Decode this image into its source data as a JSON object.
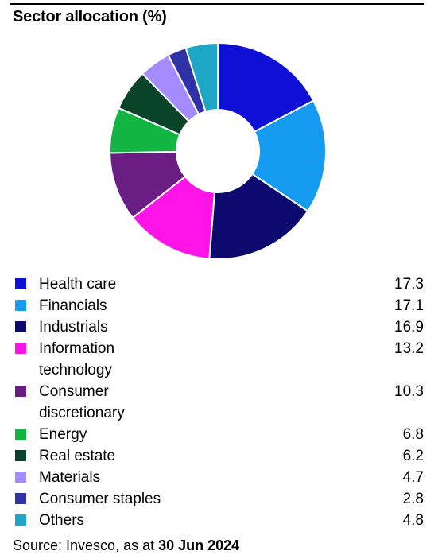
{
  "title": "Sector allocation (%)",
  "chart_data": {
    "type": "pie",
    "title": "Sector allocation (%)",
    "donut": true,
    "categories": [
      "Health care",
      "Financials",
      "Industrials",
      "Information technology",
      "Consumer discretionary",
      "Energy",
      "Real estate",
      "Materials",
      "Consumer staples",
      "Others"
    ],
    "values": [
      17.3,
      17.1,
      16.9,
      13.2,
      10.3,
      6.8,
      6.2,
      4.7,
      2.8,
      4.8
    ],
    "colors": [
      "#0f10d6",
      "#159cf0",
      "#0c0a6f",
      "#ff14e8",
      "#6a1d82",
      "#12b442",
      "#0a4428",
      "#a48cff",
      "#2f31a6",
      "#1ea6c6"
    ],
    "legend_position": "bottom"
  },
  "legend": [
    {
      "label": "Health care",
      "value": "17.3"
    },
    {
      "label": "Financials",
      "value": "17.1"
    },
    {
      "label": "Industrials",
      "value": "16.9"
    },
    {
      "label": "Information technology",
      "value": "13.2"
    },
    {
      "label": "Consumer discretionary",
      "value": "10.3"
    },
    {
      "label": "Energy",
      "value": "6.8"
    },
    {
      "label": "Real estate",
      "value": "6.2"
    },
    {
      "label": "Materials",
      "value": "4.7"
    },
    {
      "label": "Consumer staples",
      "value": "2.8"
    },
    {
      "label": "Others",
      "value": "4.8"
    }
  ],
  "source": {
    "prefix": "Source: Invesco, as at ",
    "date": "30 Jun 2024"
  }
}
